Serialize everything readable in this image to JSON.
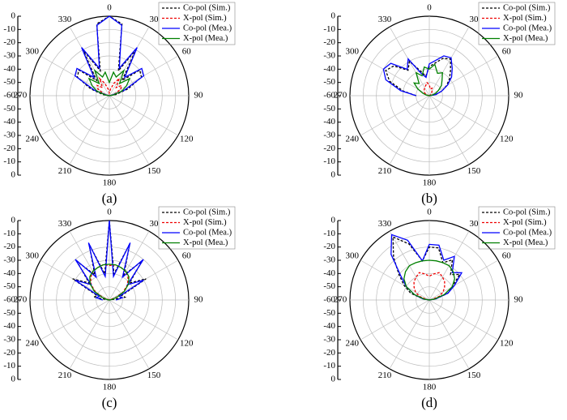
{
  "chart_data": [
    {
      "type": "polar",
      "caption": "(a)",
      "rlim": [
        -60,
        0
      ],
      "rticks": [
        0,
        -10,
        -20,
        -30,
        -40,
        -50,
        -60
      ],
      "angle_ticks": [
        0,
        30,
        60,
        90,
        120,
        150,
        180,
        210,
        240,
        270,
        300,
        330
      ],
      "x": [
        -90,
        -80,
        -70,
        -60,
        -50,
        -40,
        -30,
        -20,
        -10,
        0,
        10,
        20,
        30,
        40,
        50,
        60,
        70,
        80,
        90
      ],
      "series": [
        {
          "name": "Co-pol (Sim.)",
          "color": "#000000",
          "dashed": true,
          "values": [
            -60,
            -55,
            -45,
            -32,
            -30,
            -45,
            -20,
            -40,
            -5,
            0,
            -5,
            -40,
            -20,
            -45,
            -30,
            -32,
            -45,
            -55,
            -60
          ]
        },
        {
          "name": "X-pol (Sim.)",
          "color": "#ee0000",
          "dashed": true,
          "values": [
            -60,
            -58,
            -55,
            -50,
            -48,
            -52,
            -45,
            -50,
            -55,
            -58,
            -55,
            -50,
            -45,
            -52,
            -48,
            -50,
            -55,
            -58,
            -60
          ]
        },
        {
          "name": "Co-pol (Mea.)",
          "color": "#0000ff",
          "dashed": false,
          "values": [
            -60,
            -58,
            -48,
            -30,
            -28,
            -42,
            -18,
            -38,
            -6,
            0,
            -6,
            -38,
            -18,
            -42,
            -28,
            -30,
            -48,
            -58,
            -60
          ]
        },
        {
          "name": "X-pol (Mea.)",
          "color": "#008000",
          "dashed": false,
          "values": [
            -60,
            -57,
            -50,
            -45,
            -40,
            -48,
            -38,
            -45,
            -42,
            -50,
            -42,
            -45,
            -38,
            -48,
            -40,
            -45,
            -50,
            -57,
            -60
          ]
        }
      ]
    },
    {
      "type": "polar",
      "caption": "(b)",
      "rlim": [
        -60,
        0
      ],
      "rticks": [
        0,
        -10,
        -20,
        -30,
        -40,
        -50,
        -60
      ],
      "angle_ticks": [
        0,
        30,
        60,
        90,
        120,
        150,
        180,
        210,
        240,
        270,
        300,
        330
      ],
      "x": [
        -90,
        -80,
        -70,
        -60,
        -50,
        -40,
        -30,
        -20,
        -10,
        0,
        10,
        20,
        30,
        40,
        50,
        60,
        70,
        80,
        90
      ],
      "series": [
        {
          "name": "Co-pol (Sim.)",
          "color": "#000000",
          "dashed": true,
          "values": [
            -50,
            -40,
            -28,
            -22,
            -25,
            -35,
            -30,
            -40,
            -45,
            -38,
            -35,
            -30,
            -28,
            -35,
            -40,
            -45,
            -50,
            -55,
            -60
          ]
        },
        {
          "name": "X-pol (Sim.)",
          "color": "#ee0000",
          "dashed": true,
          "values": [
            -60,
            -59,
            -58,
            -56,
            -55,
            -54,
            -53,
            -52,
            -50,
            -52,
            -55,
            -54,
            -56,
            -57,
            -58,
            -59,
            -60,
            -60,
            -60
          ]
        },
        {
          "name": "Co-pol (Mea.)",
          "color": "#0000ff",
          "dashed": false,
          "values": [
            -50,
            -38,
            -25,
            -20,
            -22,
            -34,
            -28,
            -42,
            -46,
            -36,
            -33,
            -28,
            -27,
            -33,
            -38,
            -44,
            -50,
            -55,
            -60
          ]
        },
        {
          "name": "X-pol (Mea.)",
          "color": "#008000",
          "dashed": false,
          "values": [
            -60,
            -58,
            -55,
            -50,
            -45,
            -48,
            -40,
            -44,
            -38,
            -40,
            -36,
            -42,
            -40,
            -45,
            -48,
            -52,
            -55,
            -58,
            -60
          ]
        }
      ]
    },
    {
      "type": "polar",
      "caption": "(c)",
      "rlim": [
        -60,
        0
      ],
      "rticks": [
        0,
        -10,
        -20,
        -30,
        -40,
        -50,
        -60
      ],
      "angle_ticks": [
        0,
        30,
        60,
        90,
        120,
        150,
        180,
        210,
        240,
        270,
        300,
        330
      ],
      "x": [
        -90,
        -80,
        -70,
        -60,
        -50,
        -40,
        -30,
        -20,
        -10,
        0,
        10,
        20,
        30,
        40,
        50,
        60,
        70,
        80,
        90
      ],
      "series": [
        {
          "name": "Co-pol (Sim.)",
          "color": "#000000",
          "dashed": true,
          "values": [
            -60,
            -48,
            -50,
            -28,
            -40,
            -22,
            -38,
            -15,
            -40,
            0,
            -40,
            -15,
            -38,
            -22,
            -40,
            -28,
            -50,
            -48,
            -60
          ]
        },
        {
          "name": "X-pol (Sim.)",
          "color": "#ee0000",
          "dashed": true,
          "values": [
            -60,
            -60,
            -55,
            -48,
            -42,
            -38,
            -35,
            -34,
            -33,
            -34,
            -33,
            -34,
            -35,
            -38,
            -42,
            -48,
            -55,
            -60,
            -60
          ]
        },
        {
          "name": "Co-pol (Mea.)",
          "color": "#0000ff",
          "dashed": false,
          "values": [
            -55,
            -50,
            -52,
            -30,
            -42,
            -20,
            -40,
            -14,
            -42,
            0,
            -42,
            -14,
            -40,
            -20,
            -42,
            -30,
            -52,
            -50,
            -55
          ]
        },
        {
          "name": "X-pol (Mea.)",
          "color": "#008000",
          "dashed": false,
          "values": [
            -60,
            -58,
            -54,
            -47,
            -41,
            -37,
            -35,
            -34,
            -33,
            -33,
            -33,
            -34,
            -35,
            -37,
            -41,
            -47,
            -54,
            -58,
            -60
          ]
        }
      ]
    },
    {
      "type": "polar",
      "caption": "(d)",
      "rlim": [
        -60,
        0
      ],
      "rticks": [
        0,
        -10,
        -20,
        -30,
        -40,
        -50,
        -60
      ],
      "angle_ticks": [
        0,
        30,
        60,
        90,
        120,
        150,
        180,
        210,
        240,
        270,
        300,
        330
      ],
      "x": [
        -90,
        -80,
        -70,
        -60,
        -50,
        -40,
        -30,
        -20,
        -10,
        0,
        10,
        20,
        30,
        40,
        50,
        60,
        70,
        80,
        90
      ],
      "series": [
        {
          "name": "Co-pol (Sim.)",
          "color": "#000000",
          "dashed": true,
          "values": [
            -60,
            -55,
            -45,
            -38,
            -30,
            -18,
            -5,
            -15,
            -30,
            -20,
            -20,
            -30,
            -25,
            -35,
            -30,
            -40,
            -45,
            -55,
            -60
          ]
        },
        {
          "name": "X-pol (Sim.)",
          "color": "#ee0000",
          "dashed": true,
          "values": [
            -60,
            -58,
            -52,
            -48,
            -45,
            -42,
            -40,
            -38,
            -40,
            -42,
            -40,
            -38,
            -40,
            -42,
            -45,
            -48,
            -52,
            -58,
            -60
          ]
        },
        {
          "name": "Co-pol (Mea.)",
          "color": "#0000ff",
          "dashed": false,
          "values": [
            -60,
            -55,
            -48,
            -40,
            -32,
            -15,
            -3,
            -12,
            -30,
            -18,
            -18,
            -28,
            -22,
            -33,
            -28,
            -38,
            -45,
            -55,
            -60
          ]
        },
        {
          "name": "X-pol (Mea.)",
          "color": "#008000",
          "dashed": false,
          "values": [
            -60,
            -56,
            -48,
            -40,
            -35,
            -32,
            -30,
            -30,
            -30,
            -30,
            -30,
            -30,
            -30,
            -32,
            -35,
            -40,
            -48,
            -56,
            -60
          ]
        }
      ]
    }
  ]
}
